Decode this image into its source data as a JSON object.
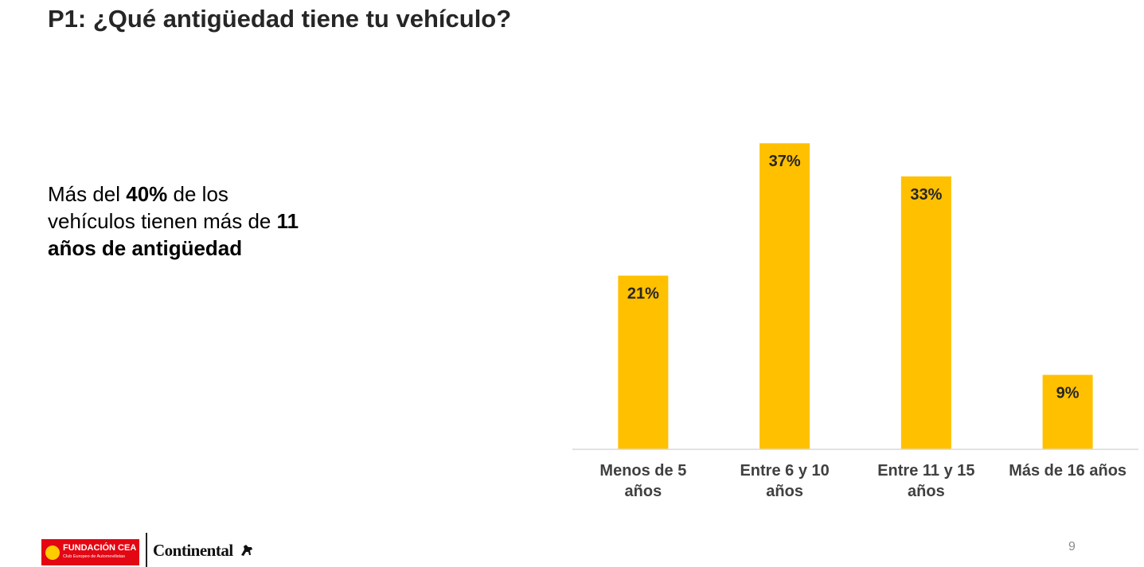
{
  "slide": {
    "title": "P1: ¿Qué antigüedad tiene tu vehículo?",
    "callout": {
      "t1": "Más del ",
      "t2": "40%",
      "t3": " de los vehículos tienen más de ",
      "t4": "11 años de antigüedad"
    },
    "page_number": "9"
  },
  "logos": {
    "fundacion_name": "FUNDACIÓN CEA",
    "fundacion_sub": "Club Europeo de Automovilistas",
    "continental": "Continental",
    "brand_red": "#e30613"
  },
  "chart_data": {
    "type": "bar",
    "categories": [
      [
        "Menos de 5",
        "años"
      ],
      [
        "Entre 6 y 10",
        "años"
      ],
      [
        "Entre 11 y 15",
        "años"
      ],
      [
        "Más de 16 años"
      ]
    ],
    "values": [
      21,
      37,
      33,
      9
    ],
    "value_labels": [
      "21%",
      "37%",
      "33%",
      "9%"
    ],
    "bar_color": "#ffc000",
    "axis_color": "#d9d9d9",
    "ylim": [
      0,
      40
    ],
    "grid": false,
    "legend": "none"
  }
}
